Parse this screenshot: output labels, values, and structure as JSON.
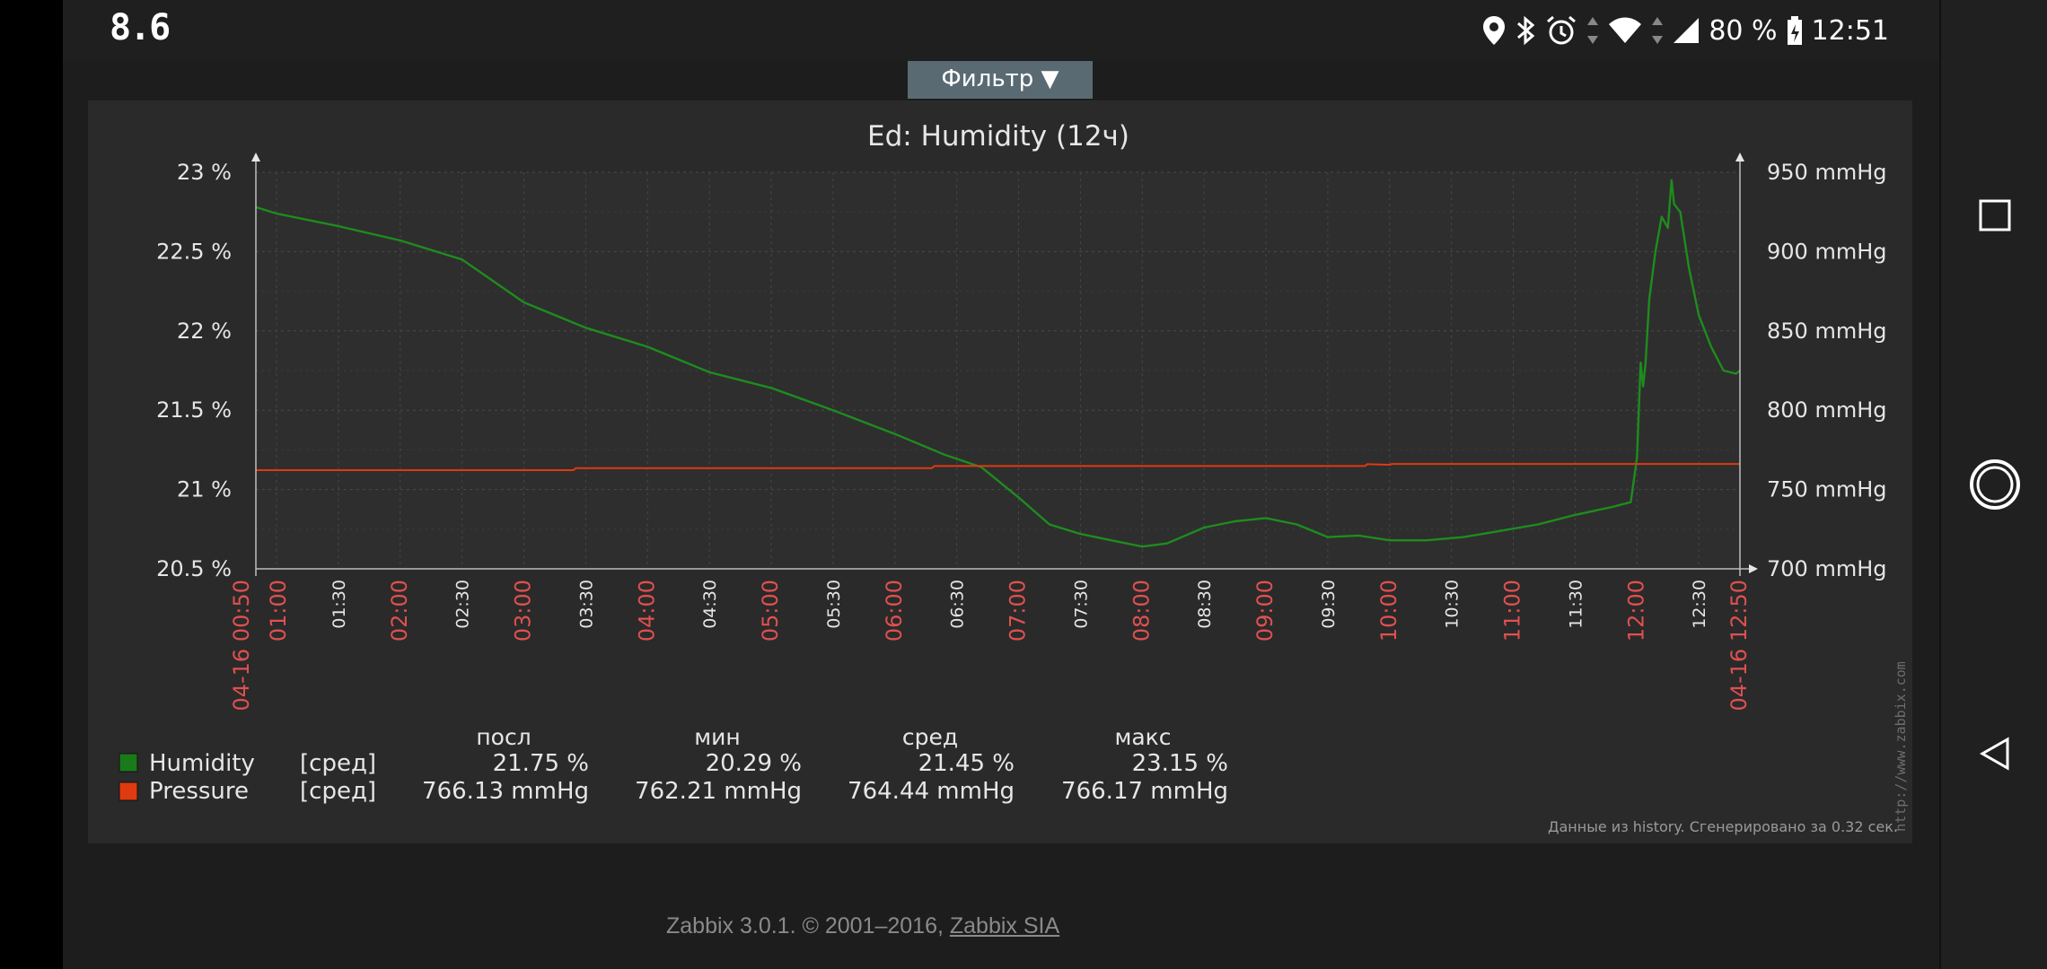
{
  "status_bar": {
    "left_text": "8.6",
    "battery": "80 %",
    "time": "12:51",
    "icons": [
      "location-icon",
      "bluetooth-icon",
      "alarm-icon",
      "data-arrows-icon",
      "wifi-icon",
      "cell-signal-icon",
      "battery-icon"
    ]
  },
  "filter_tab": {
    "label": "Фильтр ▼"
  },
  "chart_data": {
    "type": "line",
    "title": "Ed: Humidity (12ч)",
    "y_left": {
      "ticks": [
        "23 %",
        "22.5 %",
        "22 %",
        "21.5 %",
        "21 %",
        "20.5 %"
      ],
      "range": [
        20.5,
        23
      ]
    },
    "y_right": {
      "ticks": [
        "950 mmHg",
        "900 mmHg",
        "850 mmHg",
        "800 mmHg",
        "750 mmHg",
        "700 mmHg"
      ],
      "range": [
        700,
        950
      ]
    },
    "x_ticks": [
      {
        "label": "04-16 00:50",
        "red": true
      },
      {
        "label": "01:00",
        "red": true
      },
      {
        "label": "01:30",
        "red": false
      },
      {
        "label": "02:00",
        "red": true
      },
      {
        "label": "02:30",
        "red": false
      },
      {
        "label": "03:00",
        "red": true
      },
      {
        "label": "03:30",
        "red": false
      },
      {
        "label": "04:00",
        "red": true
      },
      {
        "label": "04:30",
        "red": false
      },
      {
        "label": "05:00",
        "red": true
      },
      {
        "label": "05:30",
        "red": false
      },
      {
        "label": "06:00",
        "red": true
      },
      {
        "label": "06:30",
        "red": false
      },
      {
        "label": "07:00",
        "red": true
      },
      {
        "label": "07:30",
        "red": false
      },
      {
        "label": "08:00",
        "red": true
      },
      {
        "label": "08:30",
        "red": false
      },
      {
        "label": "09:00",
        "red": true
      },
      {
        "label": "09:30",
        "red": false
      },
      {
        "label": "10:00",
        "red": true
      },
      {
        "label": "10:30",
        "red": false
      },
      {
        "label": "11:00",
        "red": true
      },
      {
        "label": "11:30",
        "red": false
      },
      {
        "label": "12:00",
        "red": true
      },
      {
        "label": "12:30",
        "red": false
      },
      {
        "label": "04-16 12:50",
        "red": true
      }
    ],
    "x_hours_range": [
      0.833,
      12.833
    ],
    "series": [
      {
        "name": "Humidity",
        "color": "#1e8c1e",
        "axis": "left",
        "points": [
          [
            0.833,
            22.78
          ],
          [
            1.0,
            22.74
          ],
          [
            1.5,
            22.66
          ],
          [
            2.0,
            22.57
          ],
          [
            2.5,
            22.45
          ],
          [
            3.0,
            22.18
          ],
          [
            3.5,
            22.02
          ],
          [
            4.0,
            21.9
          ],
          [
            4.5,
            21.74
          ],
          [
            5.0,
            21.64
          ],
          [
            5.5,
            21.5
          ],
          [
            6.0,
            21.35
          ],
          [
            6.4,
            21.22
          ],
          [
            6.7,
            21.14
          ],
          [
            7.0,
            20.95
          ],
          [
            7.25,
            20.78
          ],
          [
            7.5,
            20.72
          ],
          [
            7.75,
            20.68
          ],
          [
            8.0,
            20.64
          ],
          [
            8.2,
            20.66
          ],
          [
            8.5,
            20.76
          ],
          [
            8.75,
            20.8
          ],
          [
            9.0,
            20.82
          ],
          [
            9.25,
            20.78
          ],
          [
            9.5,
            20.7
          ],
          [
            9.75,
            20.71
          ],
          [
            10.0,
            20.68
          ],
          [
            10.3,
            20.68
          ],
          [
            10.6,
            20.7
          ],
          [
            10.9,
            20.74
          ],
          [
            11.2,
            20.78
          ],
          [
            11.5,
            20.84
          ],
          [
            11.8,
            20.89
          ],
          [
            11.95,
            20.92
          ],
          [
            12.0,
            21.2
          ],
          [
            12.03,
            21.8
          ],
          [
            12.05,
            21.65
          ],
          [
            12.07,
            21.8
          ],
          [
            12.1,
            22.2
          ],
          [
            12.15,
            22.5
          ],
          [
            12.2,
            22.72
          ],
          [
            12.25,
            22.65
          ],
          [
            12.28,
            22.95
          ],
          [
            12.3,
            22.8
          ],
          [
            12.35,
            22.75
          ],
          [
            12.42,
            22.4
          ],
          [
            12.5,
            22.1
          ],
          [
            12.6,
            21.9
          ],
          [
            12.7,
            21.75
          ],
          [
            12.8,
            21.73
          ],
          [
            12.833,
            21.75
          ]
        ]
      },
      {
        "name": "Pressure",
        "color": "#e03a10",
        "axis": "right",
        "points": [
          [
            0.833,
            762.2
          ],
          [
            3.4,
            762.2
          ],
          [
            3.42,
            763.5
          ],
          [
            6.3,
            763.5
          ],
          [
            6.32,
            764.8
          ],
          [
            9.8,
            764.8
          ],
          [
            9.82,
            766.0
          ],
          [
            10.0,
            765.6
          ],
          [
            10.02,
            766.1
          ],
          [
            12.833,
            766.13
          ]
        ]
      }
    ],
    "legend": {
      "headers": [
        "посл",
        "мин",
        "сред",
        "макс"
      ],
      "rows": [
        {
          "name": "Humidity",
          "func": "[сред]",
          "color": "#1a7a1a",
          "last": "21.75 %",
          "min": "20.29 %",
          "avg": "21.45 %",
          "max": "23.15 %"
        },
        {
          "name": "Pressure",
          "func": "[сред]",
          "color": "#e03a10",
          "last": "766.13 mmHg",
          "min": "762.21 mmHg",
          "avg": "764.44 mmHg",
          "max": "766.17 mmHg"
        }
      ]
    },
    "watermark": "http://www.zabbix.com",
    "note": "Данные из history. Сгенерировано за 0.32 сек."
  },
  "footer": {
    "text": "Zabbix 3.0.1. © 2001–2016, ",
    "link": "Zabbix SIA"
  },
  "nav": {
    "icons": [
      "recents-square-icon",
      "home-circle-icon",
      "back-triangle-icon"
    ]
  }
}
